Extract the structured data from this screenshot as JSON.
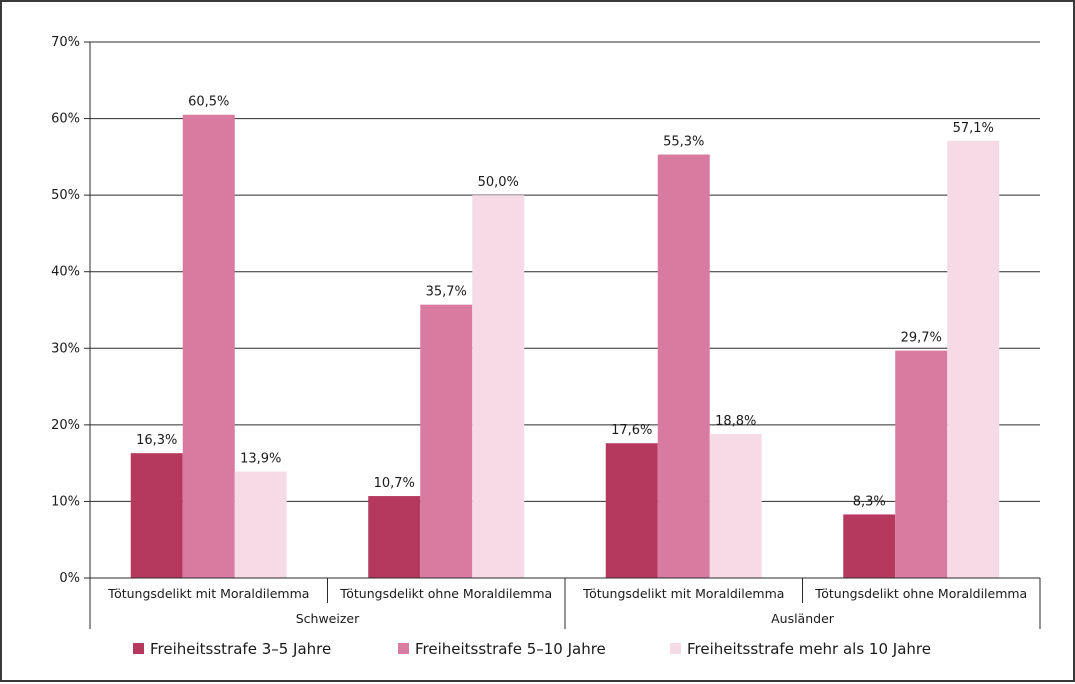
{
  "chart_data": {
    "type": "bar",
    "ylim": [
      0,
      70
    ],
    "y_ticks": [
      0,
      10,
      20,
      30,
      40,
      50,
      60,
      70
    ],
    "y_tick_labels": [
      "0%",
      "10%",
      "20%",
      "30%",
      "40%",
      "50%",
      "60%",
      "70%"
    ],
    "grid": true,
    "legend_position": "bottom",
    "groups": [
      {
        "label": "Schweizer",
        "categories": [
          "Tötungsdelikt mit Moraldilemma",
          "Tötungsdelikt ohne Moraldilemma"
        ]
      },
      {
        "label": "Ausländer",
        "categories": [
          "Tötungsdelikt mit Moraldilemma",
          "Tötungsdelikt ohne Moraldilemma"
        ]
      }
    ],
    "series": [
      {
        "name": "Freiheitsstrafe 3–5 Jahre",
        "color": "#b5385f",
        "values": [
          16.3,
          10.7,
          17.6,
          8.3
        ],
        "labels": [
          "16,3%",
          "10,7%",
          "17,6%",
          "8,3%"
        ]
      },
      {
        "name": "Freiheitsstrafe 5–10 Jahre",
        "color": "#d97ba0",
        "values": [
          60.5,
          35.7,
          55.3,
          29.7
        ],
        "labels": [
          "60,5%",
          "35,7%",
          "55,3%",
          "29,7%"
        ]
      },
      {
        "name": "Freiheitsstrafe mehr als 10 Jahre",
        "color": "#f6dbe6",
        "values": [
          13.9,
          50.0,
          18.8,
          57.1
        ],
        "labels": [
          "13,9%",
          "50,0%",
          "18,8%",
          "57,1%"
        ]
      }
    ]
  }
}
